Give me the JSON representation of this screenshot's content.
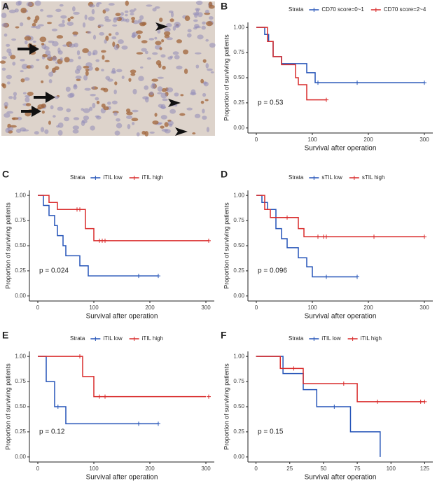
{
  "panel_a_label": "A",
  "chart_data": [
    {
      "type": "step",
      "panel": "B",
      "legend_title": "Strata",
      "ylabel": "Proportion of surviving patients",
      "xlabel": "Survival after operation",
      "annotation": "p = 0.53",
      "xlim": [
        -15,
        315
      ],
      "xticks": [
        0,
        100,
        200,
        300
      ],
      "ylim": [
        -0.05,
        1.05
      ],
      "yticks": [
        {
          "value": 0,
          "label": "0.00"
        },
        {
          "value": 0.25,
          "label": "0.25"
        },
        {
          "value": 0.5,
          "label": "0.50"
        },
        {
          "value": 0.75,
          "label": "0.75"
        },
        {
          "value": 1,
          "label": "1.00"
        }
      ],
      "series": [
        {
          "name": "CD70 score=0~1",
          "color": "#2554b8",
          "x": [
            0,
            15,
            22,
            30,
            45,
            90,
            105,
            300
          ],
          "values": [
            1,
            0.93,
            0.86,
            0.71,
            0.64,
            0.55,
            0.45,
            0.45
          ],
          "censor_x": [
            110,
            180,
            300
          ],
          "censor_y": [
            0.45,
            0.45,
            0.45
          ]
        },
        {
          "name": "CD70 score=2~4",
          "color": "#d92b2b",
          "x": [
            0,
            10,
            20,
            30,
            45,
            70,
            75,
            90,
            125
          ],
          "values": [
            1,
            1,
            0.86,
            0.71,
            0.63,
            0.5,
            0.43,
            0.28,
            0.28
          ],
          "censor_x": [
            125
          ],
          "censor_y": [
            0.28
          ]
        }
      ]
    },
    {
      "type": "step",
      "panel": "C",
      "legend_title": "Strata",
      "ylabel": "Proportion of surviving patients",
      "xlabel": "Survival after operation",
      "annotation": "p = 0.024",
      "xlim": [
        -15,
        315
      ],
      "xticks": [
        0,
        100,
        200,
        300
      ],
      "ylim": [
        -0.05,
        1.05
      ],
      "yticks": [
        {
          "value": 0,
          "label": "0.00"
        },
        {
          "value": 0.25,
          "label": "0.25"
        },
        {
          "value": 0.5,
          "label": "0.50"
        },
        {
          "value": 0.75,
          "label": "0.75"
        },
        {
          "value": 1,
          "label": "1.00"
        }
      ],
      "series": [
        {
          "name": "iTIL low",
          "color": "#2554b8",
          "x": [
            0,
            10,
            20,
            30,
            35,
            45,
            50,
            60,
            75,
            90,
            215
          ],
          "values": [
            1,
            0.9,
            0.8,
            0.7,
            0.6,
            0.5,
            0.4,
            0.4,
            0.3,
            0.2,
            0.2
          ],
          "censor_x": [
            180,
            215
          ],
          "censor_y": [
            0.2,
            0.2
          ]
        },
        {
          "name": "iTIL high",
          "color": "#d92b2b",
          "x": [
            0,
            20,
            35,
            75,
            85,
            100,
            305
          ],
          "values": [
            1,
            0.93,
            0.86,
            0.86,
            0.67,
            0.55,
            0.55
          ],
          "censor_x": [
            70,
            75,
            110,
            115,
            120,
            305
          ],
          "censor_y": [
            0.86,
            0.86,
            0.55,
            0.55,
            0.55,
            0.55
          ]
        }
      ]
    },
    {
      "type": "step",
      "panel": "D",
      "legend_title": "Strata",
      "ylabel": "Proportion of surviving patients",
      "xlabel": "Survival after operation",
      "annotation": "p = 0.096",
      "xlim": [
        -15,
        315
      ],
      "xticks": [
        0,
        100,
        200,
        300
      ],
      "ylim": [
        -0.05,
        1.05
      ],
      "yticks": [
        {
          "value": 0,
          "label": "0.00"
        },
        {
          "value": 0.25,
          "label": "0.25"
        },
        {
          "value": 0.5,
          "label": "0.50"
        },
        {
          "value": 0.75,
          "label": "0.75"
        },
        {
          "value": 1,
          "label": "1.00"
        }
      ],
      "series": [
        {
          "name": "sTIL low",
          "color": "#2554b8",
          "x": [
            0,
            10,
            20,
            35,
            45,
            55,
            75,
            90,
            100,
            180
          ],
          "values": [
            1,
            0.93,
            0.86,
            0.67,
            0.57,
            0.48,
            0.38,
            0.29,
            0.19,
            0.19
          ],
          "censor_x": [
            125,
            180
          ],
          "censor_y": [
            0.19,
            0.19
          ]
        },
        {
          "name": "sTIL high",
          "color": "#d92b2b",
          "x": [
            0,
            15,
            25,
            75,
            85,
            300
          ],
          "values": [
            1,
            0.86,
            0.78,
            0.67,
            0.59,
            0.59
          ],
          "censor_x": [
            55,
            110,
            120,
            125,
            210,
            300
          ],
          "censor_y": [
            0.78,
            0.59,
            0.59,
            0.59,
            0.59,
            0.59
          ]
        }
      ]
    },
    {
      "type": "step",
      "panel": "E",
      "legend_title": "Strata",
      "ylabel": "Proportion of surviving patients",
      "xlabel": "Survival after operation",
      "annotation": "p = 0.12",
      "xlim": [
        -15,
        315
      ],
      "xticks": [
        0,
        100,
        200,
        300
      ],
      "ylim": [
        -0.05,
        1.05
      ],
      "yticks": [
        {
          "value": 0,
          "label": "0.00"
        },
        {
          "value": 0.25,
          "label": "0.25"
        },
        {
          "value": 0.5,
          "label": "0.50"
        },
        {
          "value": 0.75,
          "label": "0.75"
        },
        {
          "value": 1,
          "label": "1.00"
        }
      ],
      "series": [
        {
          "name": "iTIL low",
          "color": "#2554b8",
          "x": [
            0,
            15,
            30,
            50,
            215
          ],
          "values": [
            1,
            0.75,
            0.5,
            0.33,
            0.33
          ],
          "censor_x": [
            36,
            180,
            215
          ],
          "censor_y": [
            0.5,
            0.33,
            0.33
          ]
        },
        {
          "name": "iTIL high",
          "color": "#d92b2b",
          "x": [
            0,
            80,
            100,
            300
          ],
          "values": [
            1,
            0.8,
            0.6,
            0.6
          ],
          "censor_x": [
            75,
            110,
            120,
            305
          ],
          "censor_y": [
            1,
            0.6,
            0.6,
            0.6
          ]
        }
      ]
    },
    {
      "type": "step",
      "panel": "F",
      "legend_title": "Strata",
      "ylabel": "Proportion of surviving patients",
      "xlabel": "Survival after operation",
      "annotation": "p = 0.15",
      "xlim": [
        -6,
        131
      ],
      "xticks": [
        0,
        25,
        50,
        75,
        100,
        125
      ],
      "ylim": [
        -0.05,
        1.05
      ],
      "yticks": [
        {
          "value": 0,
          "label": "0.00"
        },
        {
          "value": 0.25,
          "label": "0.25"
        },
        {
          "value": 0.5,
          "label": "0.50"
        },
        {
          "value": 0.75,
          "label": "0.75"
        },
        {
          "value": 1,
          "label": "1.00"
        }
      ],
      "series": [
        {
          "name": "iTIL low",
          "color": "#2554b8",
          "x": [
            0,
            20,
            35,
            45,
            70,
            92
          ],
          "values": [
            1,
            0.83,
            0.67,
            0.5,
            0.25,
            0
          ],
          "censor_x": [
            58
          ],
          "censor_y": [
            0.5
          ]
        },
        {
          "name": "iTIL high",
          "color": "#d92b2b",
          "x": [
            0,
            18,
            35,
            75,
            125
          ],
          "values": [
            1,
            0.88,
            0.73,
            0.55,
            0.55
          ],
          "censor_x": [
            28,
            65,
            90,
            122,
            125
          ],
          "censor_y": [
            0.88,
            0.73,
            0.55,
            0.55,
            0.55
          ]
        }
      ]
    }
  ]
}
